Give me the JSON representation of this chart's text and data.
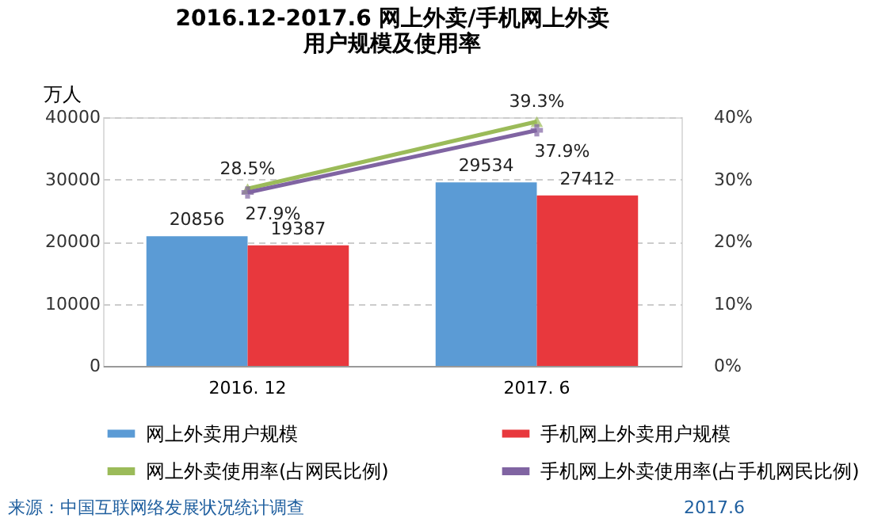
{
  "chart_data": {
    "type": "bar",
    "title": [
      "2016.12-2017.6 网上外卖/手机网上外卖",
      "用户规模及使用率"
    ],
    "ylabel": "万人",
    "categories": [
      "2016. 12",
      "2017. 6"
    ],
    "series": [
      {
        "name": "网上外卖用户规模",
        "color": "#5b9bd5",
        "values": [
          20856,
          29534
        ],
        "value_labels": [
          "20856",
          "29534"
        ]
      },
      {
        "name": "手机网上外卖用户规模",
        "color": "#e8383d",
        "values": [
          19387,
          27412
        ],
        "value_labels": [
          "19387",
          "27412"
        ]
      },
      {
        "name": "网上外卖使用率(占网民比例)",
        "type": "line",
        "axis": "y2",
        "marker": "triangle",
        "color": "#9bbb59",
        "values": [
          28.5,
          39.3
        ],
        "value_labels": [
          "28.5%",
          "39.3%"
        ]
      },
      {
        "name": "手机网上外卖使用率(占手机网民比例)",
        "type": "line",
        "axis": "y2",
        "marker": "cross",
        "color": "#8064a2",
        "values": [
          27.9,
          37.9
        ],
        "value_labels": [
          "27.9%",
          "37.9%"
        ]
      }
    ],
    "ylim": [
      0,
      40000
    ],
    "yticks": [
      0,
      10000,
      20000,
      30000,
      40000
    ],
    "y2lim": [
      0,
      40
    ],
    "y2ticks": [
      {
        "value": 0,
        "label": "0%"
      },
      {
        "value": 10,
        "label": "10%"
      },
      {
        "value": 20,
        "label": "20%"
      },
      {
        "value": 30,
        "label": "30%"
      },
      {
        "value": 40,
        "label": "40%"
      }
    ],
    "grid": "y",
    "legend": "bottom",
    "annotations": [
      "来源：中国互联网络发展状况统计调查",
      "2017.6"
    ]
  }
}
